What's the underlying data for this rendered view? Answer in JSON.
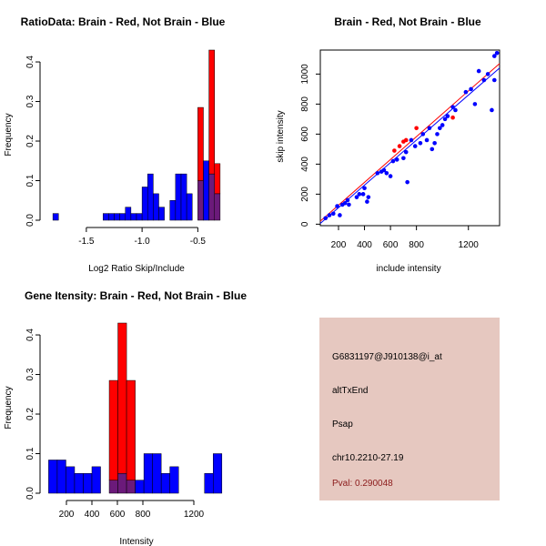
{
  "colors": {
    "brain": "#ff0000",
    "not_brain": "#0000ff",
    "overlap": "#6b1a7a",
    "info_bg": "#e6c8c0",
    "pval": "#8b1a1a"
  },
  "chart_data": [
    {
      "id": "ratio_hist",
      "type": "bar",
      "title": "RatioData: Brain - Red, Not Brain - Blue",
      "xlabel": "Log2 Ratio Skip/Include",
      "ylabel": "Frequency",
      "xlim": [
        -1.85,
        -0.25
      ],
      "ylim": [
        0,
        0.43
      ],
      "xticks": [
        -1.5,
        -1.0,
        -0.5
      ],
      "xtick_labels": [
        "-1.5",
        "-1.0",
        "-0.5"
      ],
      "yticks": [
        0,
        0.1,
        0.2,
        0.3,
        0.4
      ],
      "ytick_labels": [
        "0.0",
        "0.1",
        "0.2",
        "0.3",
        "0.4"
      ],
      "bin_start": -1.8,
      "bin_width": 0.05,
      "series": [
        {
          "name": "Brain",
          "color": "brain",
          "values": [
            0,
            0,
            0,
            0,
            0,
            0,
            0,
            0,
            0,
            0,
            0,
            0,
            0,
            0,
            0,
            0,
            0,
            0,
            0,
            0,
            0,
            0,
            0,
            0,
            0,
            0,
            0.285,
            0,
            0.43,
            0.143
          ]
        },
        {
          "name": "Not Brain",
          "color": "not_brain",
          "values": [
            0.017,
            0,
            0,
            0,
            0,
            0,
            0,
            0,
            0,
            0.017,
            0.017,
            0.017,
            0.017,
            0.033,
            0.017,
            0.017,
            0.084,
            0.117,
            0.067,
            0.033,
            0,
            0.05,
            0.117,
            0.117,
            0.067,
            0,
            0.1,
            0.15,
            0.117,
            0.067
          ]
        }
      ]
    },
    {
      "id": "scatter",
      "type": "scatter",
      "title": "Brain - Red, Not Brain - Blue",
      "xlabel": "include intensity",
      "ylabel": "skip intensity",
      "xlim": [
        60,
        1440
      ],
      "ylim": [
        -10,
        1160
      ],
      "xticks": [
        200,
        400,
        600,
        800,
        1200
      ],
      "xtick_labels": [
        "200",
        "400",
        "600",
        "800",
        "1200"
      ],
      "yticks": [
        0,
        200,
        400,
        600,
        800,
        1000
      ],
      "ytick_labels": [
        "0",
        "200",
        "400",
        "600",
        "800",
        "1000"
      ],
      "lines": [
        {
          "name": "Brain fit",
          "color": "brain",
          "x": [
            60,
            1440
          ],
          "y": [
            20,
            1070
          ]
        },
        {
          "name": "Not Brain fit",
          "color": "not_brain",
          "x": [
            60,
            1440
          ],
          "y": [
            5,
            1040
          ]
        }
      ],
      "series": [
        {
          "name": "Brain",
          "color": "brain",
          "points": [
            [
              630,
              490
            ],
            [
              670,
              520
            ],
            [
              700,
              550
            ],
            [
              720,
              560
            ],
            [
              800,
              640
            ],
            [
              1080,
              710
            ]
          ]
        },
        {
          "name": "Not Brain",
          "color": "not_brain",
          "points": [
            [
              100,
              40
            ],
            [
              130,
              60
            ],
            [
              160,
              70
            ],
            [
              190,
              120
            ],
            [
              210,
              60
            ],
            [
              230,
              130
            ],
            [
              250,
              140
            ],
            [
              270,
              160
            ],
            [
              280,
              130
            ],
            [
              340,
              180
            ],
            [
              360,
              200
            ],
            [
              390,
              200
            ],
            [
              400,
              240
            ],
            [
              420,
              150
            ],
            [
              430,
              180
            ],
            [
              500,
              340
            ],
            [
              530,
              350
            ],
            [
              550,
              360
            ],
            [
              570,
              340
            ],
            [
              600,
              320
            ],
            [
              620,
              420
            ],
            [
              650,
              430
            ],
            [
              700,
              440
            ],
            [
              720,
              480
            ],
            [
              730,
              280
            ],
            [
              760,
              560
            ],
            [
              790,
              520
            ],
            [
              830,
              540
            ],
            [
              850,
              600
            ],
            [
              880,
              560
            ],
            [
              900,
              640
            ],
            [
              920,
              500
            ],
            [
              940,
              540
            ],
            [
              960,
              600
            ],
            [
              980,
              640
            ],
            [
              1000,
              660
            ],
            [
              1020,
              700
            ],
            [
              1040,
              720
            ],
            [
              1080,
              780
            ],
            [
              1100,
              760
            ],
            [
              1180,
              880
            ],
            [
              1220,
              900
            ],
            [
              1250,
              800
            ],
            [
              1280,
              1020
            ],
            [
              1320,
              960
            ],
            [
              1350,
              1000
            ],
            [
              1380,
              760
            ],
            [
              1400,
              1120
            ],
            [
              1420,
              1140
            ],
            [
              1400,
              960
            ]
          ]
        }
      ]
    },
    {
      "id": "intensity_hist",
      "type": "bar",
      "title": "Gene Itensity: Brain - Red, Not Brain - Blue",
      "xlabel": "Intensity",
      "ylabel": "Frequency",
      "xlim": [
        50,
        1450
      ],
      "ylim": [
        0,
        0.43
      ],
      "xticks": [
        200,
        400,
        600,
        800,
        1200
      ],
      "xtick_labels": [
        "200",
        "400",
        "600",
        "800",
        "1200"
      ],
      "yticks": [
        0,
        0.1,
        0.2,
        0.3,
        0.4
      ],
      "ytick_labels": [
        "0.0",
        "0.1",
        "0.2",
        "0.3",
        "0.4"
      ],
      "bin_start": 60,
      "bin_width": 68,
      "series": [
        {
          "name": "Brain",
          "color": "brain",
          "values": [
            0,
            0,
            0,
            0,
            0,
            0,
            0,
            0.285,
            0.43,
            0.285,
            0,
            0,
            0,
            0,
            0,
            0,
            0,
            0,
            0,
            0
          ]
        },
        {
          "name": "Not Brain",
          "color": "not_brain",
          "values": [
            0.084,
            0.084,
            0.067,
            0.05,
            0.05,
            0.067,
            0,
            0.033,
            0.05,
            0.033,
            0.033,
            0.1,
            0.1,
            0.05,
            0.067,
            0,
            0,
            0,
            0.05,
            0.1
          ]
        }
      ]
    }
  ],
  "info": {
    "probe_id": "G6831197@J910138@i_at",
    "event_type": "altTxEnd",
    "gene": "Psap",
    "location": "chr10.2210-27.19",
    "pval": "Pval: 0.290048"
  }
}
